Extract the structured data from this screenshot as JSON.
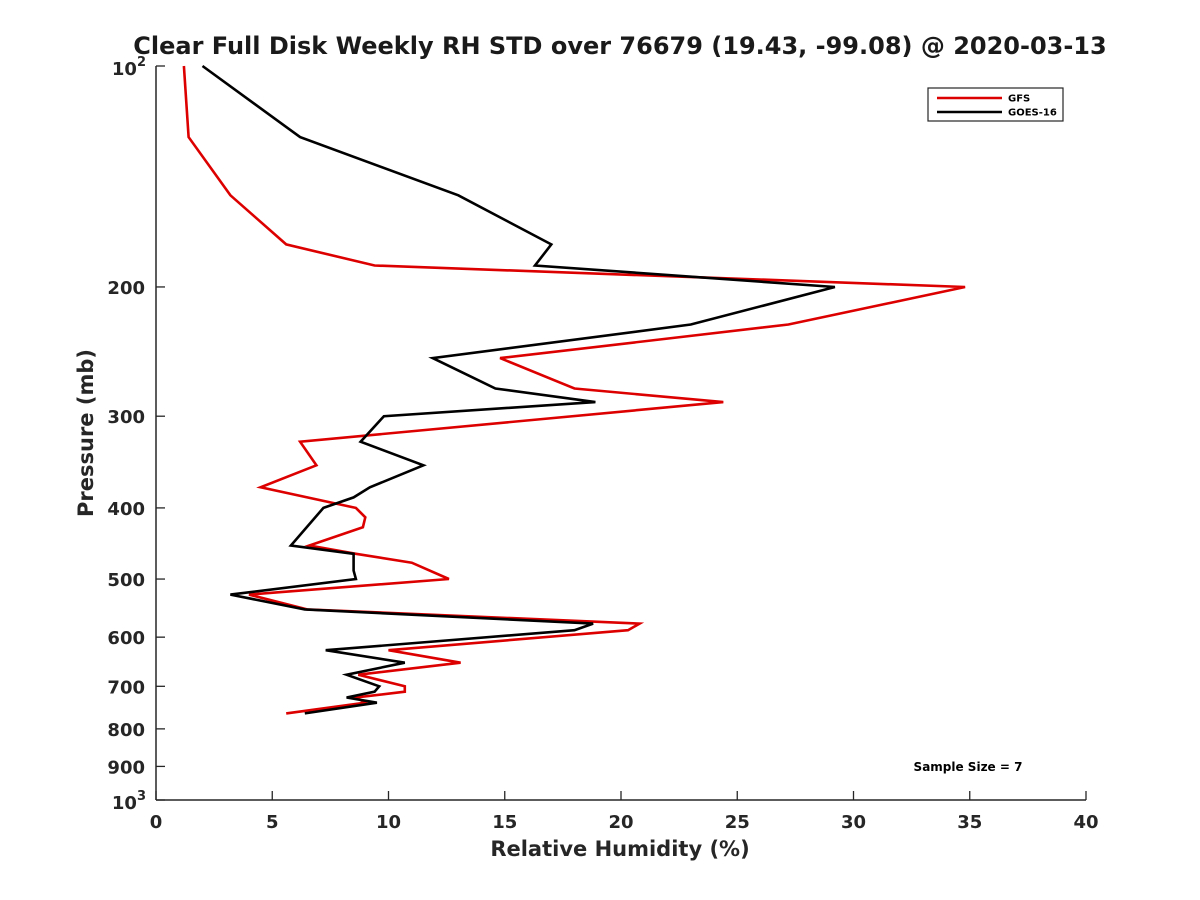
{
  "chart_data": {
    "type": "line",
    "title": "Clear Full Disk Weekly RH STD over 76679 (19.43, -99.08) @ 2020-03-13",
    "xlabel": "Relative Humidity (%)",
    "ylabel": "Pressure (mb)",
    "xlim": [
      0,
      40
    ],
    "ylim": [
      100,
      1000
    ],
    "y_scale": "log",
    "y_reversed": true,
    "x_ticks": [
      "0",
      "5",
      "10",
      "15",
      "20",
      "25",
      "30",
      "35",
      "40"
    ],
    "y_ticks": [
      {
        "value": 100,
        "base": "10",
        "exp": "2"
      },
      {
        "value": 200,
        "label": "200"
      },
      {
        "value": 300,
        "label": "300"
      },
      {
        "value": 400,
        "label": "400"
      },
      {
        "value": 500,
        "label": "500"
      },
      {
        "value": 600,
        "label": "600"
      },
      {
        "value": 700,
        "label": "700"
      },
      {
        "value": 800,
        "label": "800"
      },
      {
        "value": 900,
        "label": "900"
      },
      {
        "value": 1000,
        "base": "10",
        "exp": "3"
      }
    ],
    "legend_position": "top-right",
    "series": [
      {
        "name": "GFS",
        "color": "#dd0000",
        "points": [
          [
            1.2,
            100
          ],
          [
            1.4,
            125
          ],
          [
            3.2,
            150
          ],
          [
            5.6,
            175
          ],
          [
            9.4,
            187
          ],
          [
            34.8,
            200
          ],
          [
            27.2,
            225
          ],
          [
            14.8,
            250
          ],
          [
            18.0,
            275
          ],
          [
            24.4,
            287
          ],
          [
            6.2,
            325
          ],
          [
            6.9,
            350
          ],
          [
            4.5,
            375
          ],
          [
            8.6,
            400
          ],
          [
            9.0,
            412
          ],
          [
            8.9,
            425
          ],
          [
            6.6,
            450
          ],
          [
            8.6,
            462
          ],
          [
            11.0,
            475
          ],
          [
            12.6,
            500
          ],
          [
            4.0,
            525
          ],
          [
            6.5,
            550
          ],
          [
            20.8,
            575
          ],
          [
            20.3,
            587
          ],
          [
            10.0,
            625
          ],
          [
            13.1,
            650
          ],
          [
            8.7,
            675
          ],
          [
            10.7,
            700
          ],
          [
            10.7,
            712
          ],
          [
            8.6,
            725
          ],
          [
            9.0,
            737
          ],
          [
            5.6,
            762
          ]
        ]
      },
      {
        "name": "GOES-16",
        "color": "#000000",
        "points": [
          [
            2.0,
            100
          ],
          [
            6.2,
            125
          ],
          [
            13.0,
            150
          ],
          [
            17.0,
            175
          ],
          [
            16.3,
            187
          ],
          [
            29.2,
            200
          ],
          [
            23.0,
            225
          ],
          [
            11.9,
            250
          ],
          [
            14.6,
            275
          ],
          [
            18.9,
            287
          ],
          [
            9.8,
            300
          ],
          [
            8.8,
            325
          ],
          [
            11.5,
            350
          ],
          [
            9.2,
            375
          ],
          [
            8.5,
            387
          ],
          [
            7.2,
            400
          ],
          [
            5.8,
            450
          ],
          [
            8.5,
            462
          ],
          [
            8.5,
            487
          ],
          [
            8.6,
            500
          ],
          [
            3.2,
            525
          ],
          [
            6.4,
            550
          ],
          [
            18.8,
            575
          ],
          [
            18.0,
            587
          ],
          [
            7.3,
            625
          ],
          [
            10.7,
            650
          ],
          [
            8.2,
            675
          ],
          [
            9.6,
            700
          ],
          [
            9.4,
            712
          ],
          [
            8.2,
            725
          ],
          [
            9.5,
            737
          ],
          [
            6.4,
            762
          ]
        ]
      }
    ],
    "annotation": "Sample Size = 7"
  }
}
